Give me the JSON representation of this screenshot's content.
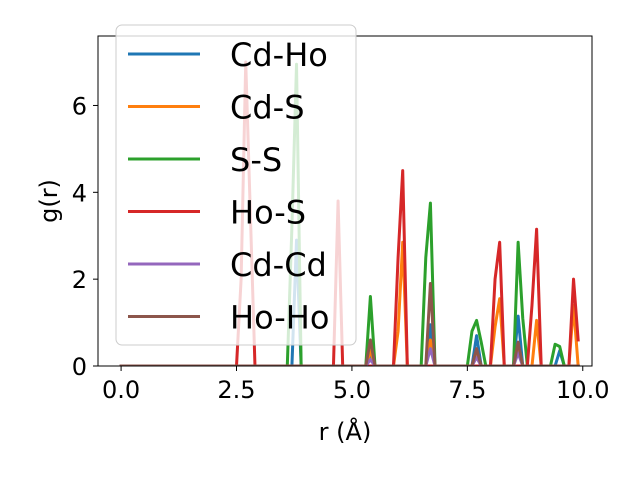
{
  "chart_data": {
    "type": "line",
    "title": "",
    "xlabel": "r (Å)",
    "ylabel": "g(r)",
    "xlim": [
      -0.5,
      10.2
    ],
    "ylim": [
      0,
      7.6
    ],
    "xticks": [
      0.0,
      2.5,
      5.0,
      7.5,
      10.0
    ],
    "xtick_labels": [
      "0.0",
      "2.5",
      "5.0",
      "7.5",
      "10.0"
    ],
    "yticks": [
      0,
      2,
      4,
      6
    ],
    "ytick_labels": [
      "0",
      "2",
      "4",
      "6"
    ],
    "grid": false,
    "legend_position": "upper-left",
    "series": [
      {
        "name": "Cd-Ho",
        "color": "#1f77b4",
        "points": [
          [
            0.0,
            0
          ],
          [
            2.6,
            0
          ],
          [
            2.7,
            0
          ],
          [
            2.8,
            0
          ],
          [
            3.7,
            0
          ],
          [
            3.8,
            2.9
          ],
          [
            3.9,
            0
          ],
          [
            4.6,
            0
          ],
          [
            4.7,
            0
          ],
          [
            4.8,
            0
          ],
          [
            5.3,
            0
          ],
          [
            5.4,
            0.3
          ],
          [
            5.5,
            0
          ],
          [
            6.0,
            0
          ],
          [
            6.1,
            0
          ],
          [
            6.2,
            0
          ],
          [
            6.6,
            0
          ],
          [
            6.7,
            0.95
          ],
          [
            6.8,
            0
          ],
          [
            7.6,
            0
          ],
          [
            7.7,
            0.7
          ],
          [
            7.8,
            0
          ],
          [
            8.1,
            0
          ],
          [
            8.2,
            0
          ],
          [
            8.3,
            0
          ],
          [
            8.5,
            0
          ],
          [
            8.6,
            1.15
          ],
          [
            8.7,
            0
          ],
          [
            8.9,
            0
          ],
          [
            9.0,
            0
          ],
          [
            9.1,
            0
          ],
          [
            9.4,
            0
          ],
          [
            9.5,
            0.35
          ],
          [
            9.6,
            0
          ],
          [
            9.8,
            0
          ],
          [
            9.9,
            0
          ]
        ]
      },
      {
        "name": "Cd-S",
        "color": "#ff7f0e",
        "points": [
          [
            0.0,
            0
          ],
          [
            2.6,
            0
          ],
          [
            2.7,
            0
          ],
          [
            2.8,
            0
          ],
          [
            3.7,
            0
          ],
          [
            3.8,
            0
          ],
          [
            3.9,
            0
          ],
          [
            4.6,
            0
          ],
          [
            4.7,
            0
          ],
          [
            4.8,
            0
          ],
          [
            5.3,
            0
          ],
          [
            5.4,
            0.35
          ],
          [
            5.5,
            0
          ],
          [
            5.9,
            0
          ],
          [
            6.0,
            0.8
          ],
          [
            6.1,
            2.85
          ],
          [
            6.2,
            0
          ],
          [
            6.6,
            0
          ],
          [
            6.7,
            0.6
          ],
          [
            6.8,
            0
          ],
          [
            7.6,
            0
          ],
          [
            7.7,
            0.35
          ],
          [
            7.8,
            0
          ],
          [
            8.0,
            0
          ],
          [
            8.1,
            0.9
          ],
          [
            8.2,
            1.55
          ],
          [
            8.3,
            0
          ],
          [
            8.5,
            0
          ],
          [
            8.6,
            0.5
          ],
          [
            8.7,
            0
          ],
          [
            8.9,
            0
          ],
          [
            9.0,
            1.05
          ],
          [
            9.1,
            0
          ],
          [
            9.7,
            0
          ],
          [
            9.8,
            1.4
          ],
          [
            9.9,
            0
          ]
        ]
      },
      {
        "name": "S-S",
        "color": "#2ca02c",
        "points": [
          [
            0.0,
            0
          ],
          [
            2.6,
            0
          ],
          [
            2.7,
            0
          ],
          [
            2.8,
            0
          ],
          [
            3.6,
            0
          ],
          [
            3.7,
            3.2
          ],
          [
            3.8,
            6.95
          ],
          [
            3.9,
            0
          ],
          [
            4.6,
            0
          ],
          [
            4.7,
            0
          ],
          [
            4.8,
            0
          ],
          [
            5.3,
            0
          ],
          [
            5.4,
            1.6
          ],
          [
            5.5,
            0
          ],
          [
            6.0,
            0
          ],
          [
            6.1,
            0
          ],
          [
            6.2,
            0
          ],
          [
            6.5,
            0
          ],
          [
            6.6,
            2.5
          ],
          [
            6.7,
            3.75
          ],
          [
            6.8,
            0
          ],
          [
            7.5,
            0
          ],
          [
            7.6,
            0.8
          ],
          [
            7.7,
            1.05
          ],
          [
            7.8,
            0.55
          ],
          [
            7.9,
            0
          ],
          [
            8.5,
            0
          ],
          [
            8.6,
            2.85
          ],
          [
            8.7,
            1.1
          ],
          [
            8.8,
            0
          ],
          [
            9.3,
            0
          ],
          [
            9.4,
            0.5
          ],
          [
            9.5,
            0.45
          ],
          [
            9.6,
            0
          ],
          [
            9.8,
            0
          ],
          [
            9.9,
            0
          ]
        ]
      },
      {
        "name": "Ho-S",
        "color": "#d62728",
        "points": [
          [
            0.0,
            0
          ],
          [
            2.5,
            0
          ],
          [
            2.6,
            2.0
          ],
          [
            2.7,
            7.0
          ],
          [
            2.8,
            3.5
          ],
          [
            2.9,
            0
          ],
          [
            3.7,
            0
          ],
          [
            3.8,
            0
          ],
          [
            3.9,
            0
          ],
          [
            4.6,
            0
          ],
          [
            4.7,
            3.8
          ],
          [
            4.8,
            0
          ],
          [
            5.3,
            0
          ],
          [
            5.4,
            0
          ],
          [
            5.5,
            0
          ],
          [
            5.9,
            0
          ],
          [
            6.0,
            2.5
          ],
          [
            6.1,
            4.5
          ],
          [
            6.2,
            0
          ],
          [
            6.6,
            0
          ],
          [
            6.7,
            0
          ],
          [
            6.8,
            0
          ],
          [
            7.6,
            0
          ],
          [
            7.7,
            0
          ],
          [
            7.8,
            0
          ],
          [
            8.0,
            0
          ],
          [
            8.1,
            2.0
          ],
          [
            8.2,
            2.85
          ],
          [
            8.3,
            0
          ],
          [
            8.5,
            0
          ],
          [
            8.6,
            0
          ],
          [
            8.7,
            0
          ],
          [
            8.8,
            0
          ],
          [
            8.9,
            1.4
          ],
          [
            9.0,
            3.15
          ],
          [
            9.1,
            0
          ],
          [
            9.7,
            0
          ],
          [
            9.8,
            2.0
          ],
          [
            9.9,
            0.6
          ]
        ]
      },
      {
        "name": "Cd-Cd",
        "color": "#9467bd",
        "points": [
          [
            0.0,
            0
          ],
          [
            2.7,
            0
          ],
          [
            3.8,
            0
          ],
          [
            4.7,
            0
          ],
          [
            5.3,
            0
          ],
          [
            5.4,
            0.15
          ],
          [
            5.5,
            0
          ],
          [
            6.1,
            0
          ],
          [
            6.6,
            0
          ],
          [
            6.7,
            0.4
          ],
          [
            6.8,
            0
          ],
          [
            7.6,
            0
          ],
          [
            7.7,
            0.2
          ],
          [
            7.8,
            0
          ],
          [
            8.2,
            0
          ],
          [
            8.5,
            0
          ],
          [
            8.6,
            0.3
          ],
          [
            8.7,
            0
          ],
          [
            9.0,
            0
          ],
          [
            9.5,
            0
          ],
          [
            9.9,
            0
          ]
        ]
      },
      {
        "name": "Ho-Ho",
        "color": "#8c564b",
        "points": [
          [
            0.0,
            0
          ],
          [
            2.7,
            0
          ],
          [
            3.8,
            0
          ],
          [
            4.7,
            0
          ],
          [
            5.3,
            0
          ],
          [
            5.4,
            0.6
          ],
          [
            5.5,
            0
          ],
          [
            6.1,
            0
          ],
          [
            6.6,
            0
          ],
          [
            6.7,
            1.9
          ],
          [
            6.8,
            0
          ],
          [
            7.6,
            0
          ],
          [
            7.7,
            0.4
          ],
          [
            7.8,
            0
          ],
          [
            8.2,
            0
          ],
          [
            8.5,
            0
          ],
          [
            8.6,
            0.55
          ],
          [
            8.7,
            0
          ],
          [
            9.0,
            0
          ],
          [
            9.5,
            0
          ],
          [
            9.9,
            0
          ]
        ]
      }
    ]
  }
}
